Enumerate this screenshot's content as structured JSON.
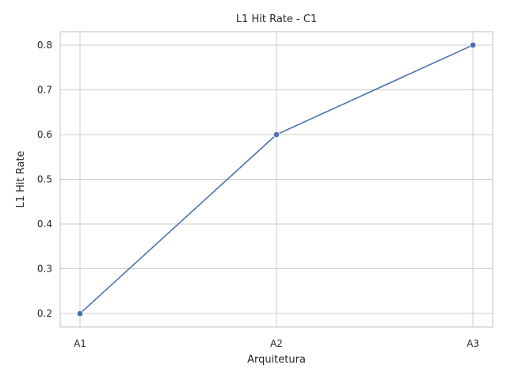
{
  "chart_data": {
    "type": "line",
    "title": "L1 Hit Rate - C1",
    "xlabel": "Arquitetura",
    "ylabel": "L1 Hit Rate",
    "categories": [
      "A1",
      "A2",
      "A3"
    ],
    "series": [
      {
        "values": [
          0.2,
          0.6,
          0.8
        ],
        "color": "#4c72b0",
        "marker": "circle"
      }
    ],
    "ylim": [
      0.17,
      0.83
    ],
    "yticks": [
      0.2,
      0.3,
      0.4,
      0.5,
      0.6,
      0.7,
      0.8
    ],
    "ytick_labels": [
      "0.2",
      "0.3",
      "0.4",
      "0.5",
      "0.6",
      "0.7",
      "0.8"
    ],
    "grid": true,
    "style": {
      "grid_color": "#cccccc",
      "frame_color": "#cccccc"
    }
  }
}
